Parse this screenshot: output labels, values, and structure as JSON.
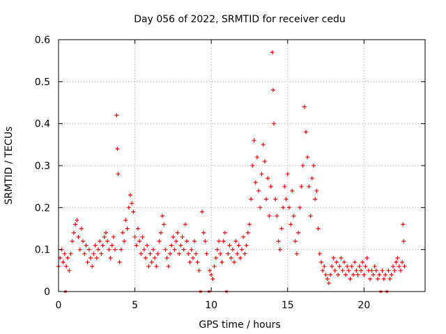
{
  "chart_data": {
    "type": "scatter",
    "title": "Day 056 of 2022, SRMTID for receiver cedu",
    "xlabel": "GPS time / hours",
    "ylabel": "SRMTID / TECUs",
    "xlim": [
      0,
      24
    ],
    "ylim": [
      0,
      0.6
    ],
    "xticks": [
      0,
      5,
      10,
      15,
      20
    ],
    "xtick_labels": [
      "0",
      "5",
      "10",
      "15",
      "20"
    ],
    "yticks": [
      0,
      0.1,
      0.2,
      0.3,
      0.4,
      0.5,
      0.6
    ],
    "ytick_labels": [
      "0",
      "0.1",
      "0.2",
      "0.3",
      "0.4",
      "0.5",
      "0.6"
    ],
    "grid": true,
    "marker": "+",
    "color": "#ff0000",
    "zero_marker_hours": [
      0.45,
      9.3,
      9.85,
      11.0,
      21.1,
      21.5
    ],
    "series": [
      {
        "name": "SRMTID",
        "x": [
          0.0,
          0.1,
          0.2,
          0.3,
          0.4,
          0.5,
          0.6,
          0.7,
          0.8,
          0.9,
          1.0,
          1.1,
          1.2,
          1.3,
          1.4,
          1.5,
          1.6,
          1.7,
          1.8,
          1.9,
          2.0,
          2.1,
          2.2,
          2.3,
          2.4,
          2.5,
          2.6,
          2.7,
          2.8,
          2.9,
          3.0,
          3.1,
          3.2,
          3.3,
          3.4,
          3.5,
          3.6,
          3.7,
          3.8,
          3.85,
          3.9,
          4.0,
          4.1,
          4.2,
          4.3,
          4.4,
          4.5,
          4.6,
          4.7,
          4.8,
          4.9,
          5.0,
          5.1,
          5.2,
          5.3,
          5.4,
          5.5,
          5.6,
          5.7,
          5.8,
          5.9,
          6.0,
          6.1,
          6.2,
          6.3,
          6.4,
          6.5,
          6.6,
          6.7,
          6.8,
          6.9,
          7.0,
          7.1,
          7.2,
          7.3,
          7.4,
          7.5,
          7.6,
          7.7,
          7.8,
          7.9,
          8.0,
          8.1,
          8.2,
          8.3,
          8.4,
          8.5,
          8.6,
          8.7,
          8.8,
          8.9,
          9.0,
          9.1,
          9.2,
          9.4,
          9.5,
          9.6,
          9.7,
          9.9,
          10.0,
          10.1,
          10.2,
          10.3,
          10.4,
          10.5,
          10.6,
          10.7,
          10.8,
          10.9,
          11.1,
          11.2,
          11.3,
          11.4,
          11.5,
          11.6,
          11.7,
          11.8,
          11.9,
          12.0,
          12.1,
          12.2,
          12.3,
          12.4,
          12.5,
          12.6,
          12.7,
          12.8,
          12.9,
          13.0,
          13.1,
          13.2,
          13.3,
          13.4,
          13.5,
          13.6,
          13.7,
          13.8,
          13.9,
          14.0,
          14.05,
          14.1,
          14.2,
          14.3,
          14.4,
          14.5,
          14.6,
          14.7,
          14.8,
          14.9,
          15.0,
          15.1,
          15.2,
          15.3,
          15.4,
          15.5,
          15.6,
          15.7,
          15.8,
          15.9,
          16.0,
          16.1,
          16.2,
          16.3,
          16.4,
          16.5,
          16.6,
          16.7,
          16.8,
          16.9,
          17.0,
          17.1,
          17.2,
          17.3,
          17.4,
          17.5,
          17.6,
          17.7,
          17.8,
          17.9,
          18.0,
          18.1,
          18.2,
          18.3,
          18.4,
          18.5,
          18.6,
          18.7,
          18.8,
          18.9,
          19.0,
          19.1,
          19.2,
          19.3,
          19.4,
          19.5,
          19.6,
          19.7,
          19.8,
          19.9,
          20.0,
          20.1,
          20.2,
          20.3,
          20.4,
          20.5,
          20.6,
          20.7,
          20.8,
          20.9,
          21.0,
          21.2,
          21.3,
          21.4,
          21.6,
          21.7,
          21.8,
          21.9,
          22.0,
          22.1,
          22.2,
          22.3,
          22.4,
          22.5,
          22.55,
          22.6,
          22.65
        ],
        "y": [
          0.06,
          0.08,
          0.1,
          0.07,
          0.09,
          0.06,
          0.08,
          0.05,
          0.09,
          0.12,
          0.14,
          0.16,
          0.17,
          0.13,
          0.1,
          0.15,
          0.12,
          0.09,
          0.11,
          0.07,
          0.1,
          0.08,
          0.06,
          0.09,
          0.11,
          0.08,
          0.1,
          0.12,
          0.09,
          0.11,
          0.13,
          0.14,
          0.12,
          0.1,
          0.08,
          0.11,
          0.13,
          0.1,
          0.42,
          0.34,
          0.28,
          0.07,
          0.1,
          0.14,
          0.12,
          0.17,
          0.15,
          0.2,
          0.23,
          0.21,
          0.19,
          0.13,
          0.11,
          0.15,
          0.12,
          0.09,
          0.13,
          0.1,
          0.08,
          0.11,
          0.06,
          0.09,
          0.07,
          0.1,
          0.08,
          0.06,
          0.09,
          0.12,
          0.14,
          0.18,
          0.16,
          0.1,
          0.08,
          0.06,
          0.09,
          0.11,
          0.13,
          0.1,
          0.12,
          0.14,
          0.09,
          0.11,
          0.13,
          0.1,
          0.16,
          0.12,
          0.09,
          0.07,
          0.1,
          0.08,
          0.12,
          0.09,
          0.07,
          0.05,
          0.19,
          0.14,
          0.12,
          0.09,
          0.05,
          0.04,
          0.03,
          0.06,
          0.08,
          0.1,
          0.12,
          0.09,
          0.07,
          0.12,
          0.14,
          0.09,
          0.11,
          0.08,
          0.1,
          0.07,
          0.12,
          0.09,
          0.11,
          0.08,
          0.1,
          0.13,
          0.09,
          0.11,
          0.14,
          0.16,
          0.22,
          0.3,
          0.36,
          0.26,
          0.32,
          0.24,
          0.2,
          0.28,
          0.35,
          0.31,
          0.22,
          0.27,
          0.18,
          0.25,
          0.57,
          0.48,
          0.4,
          0.22,
          0.18,
          0.12,
          0.1,
          0.15,
          0.2,
          0.25,
          0.22,
          0.28,
          0.2,
          0.16,
          0.24,
          0.18,
          0.12,
          0.09,
          0.14,
          0.2,
          0.25,
          0.3,
          0.44,
          0.38,
          0.32,
          0.25,
          0.18,
          0.27,
          0.3,
          0.22,
          0.24,
          0.15,
          0.09,
          0.07,
          0.05,
          0.06,
          0.04,
          0.03,
          0.02,
          0.04,
          0.06,
          0.08,
          0.05,
          0.07,
          0.04,
          0.06,
          0.08,
          0.05,
          0.07,
          0.04,
          0.06,
          0.05,
          0.03,
          0.06,
          0.04,
          0.07,
          0.05,
          0.04,
          0.06,
          0.05,
          0.07,
          0.04,
          0.06,
          0.08,
          0.05,
          0.03,
          0.05,
          0.04,
          0.06,
          0.05,
          0.03,
          0.04,
          0.05,
          0.03,
          0.04,
          0.05,
          0.03,
          0.04,
          0.06,
          0.05,
          0.07,
          0.08,
          0.06,
          0.05,
          0.07,
          0.16,
          0.12,
          0.06
        ]
      }
    ]
  }
}
